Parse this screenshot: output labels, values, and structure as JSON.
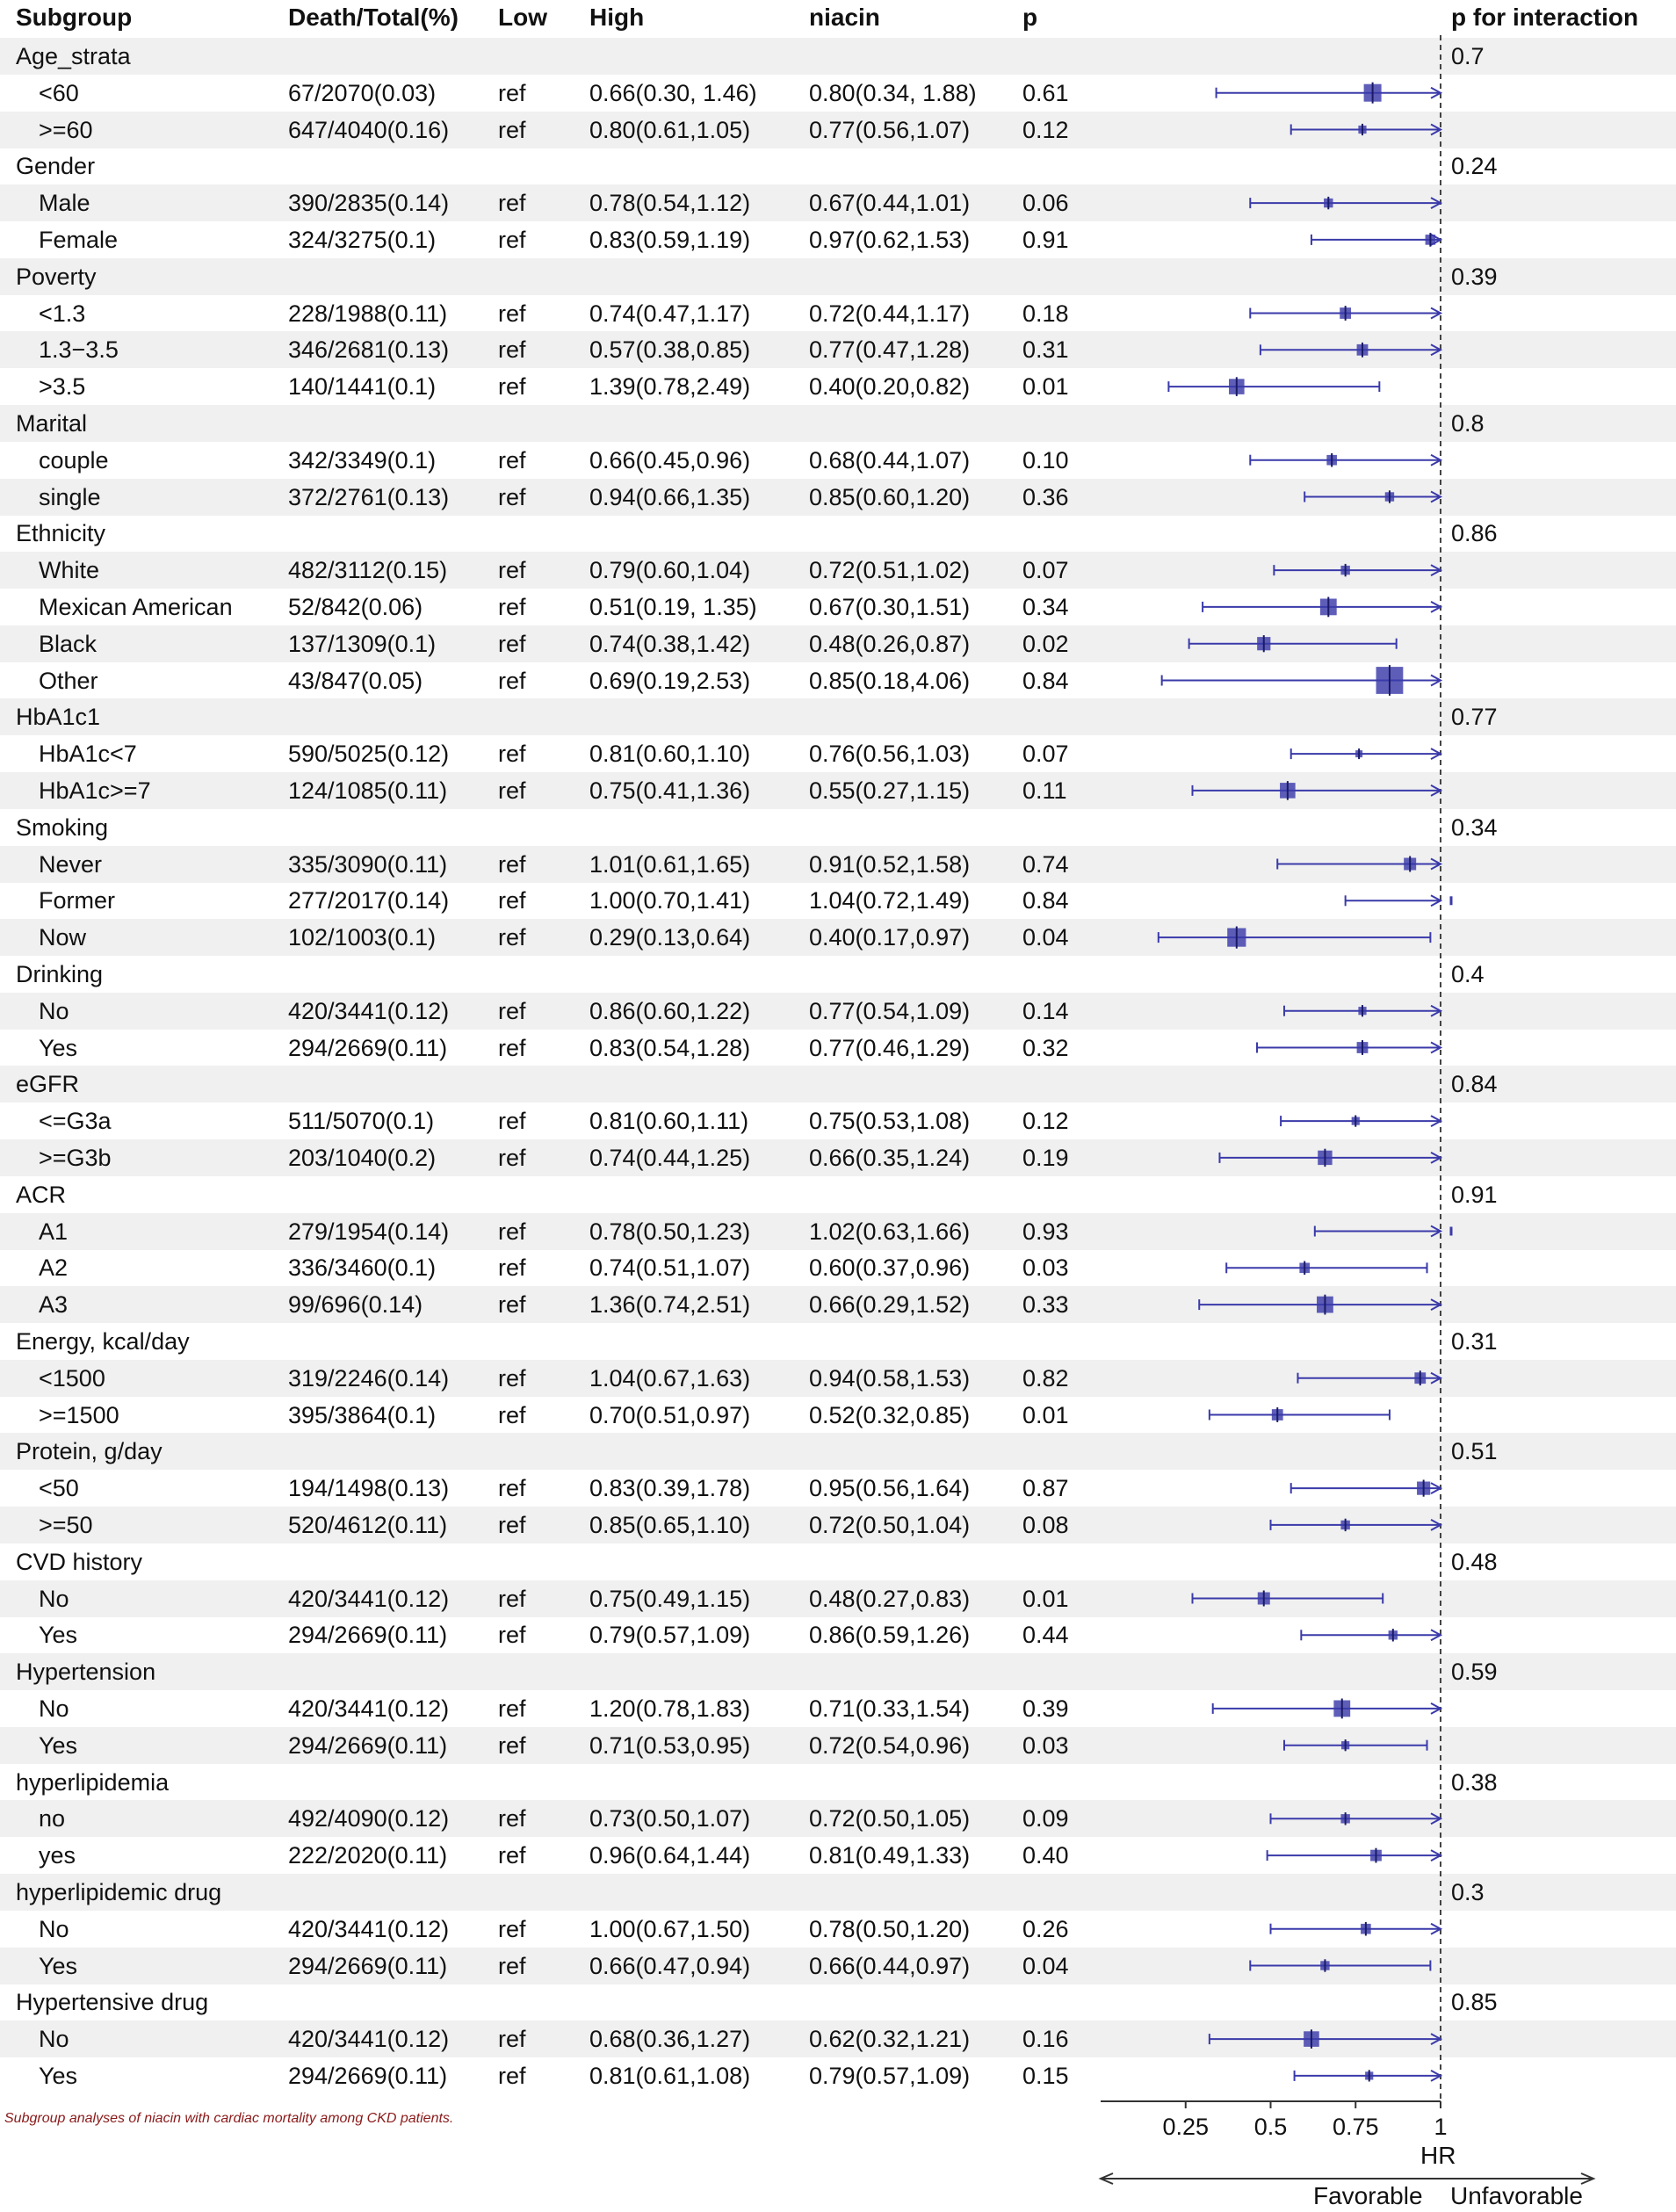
{
  "headers": {
    "subgroup": "Subgroup",
    "death": "Death/Total(%)",
    "low": "Low",
    "high": "High",
    "niacin": "niacin",
    "p": "p",
    "pint": "p for interaction"
  },
  "rows": [
    {
      "type": "group",
      "label": "Age_strata",
      "pint": "0.7"
    },
    {
      "type": "sub",
      "label": "<60",
      "death": "67/2070(0.03)",
      "low": "ref",
      "high": "0.66(0.30, 1.46)",
      "niacin": "0.80(0.34, 1.88)",
      "p": "0.61"
    },
    {
      "type": "sub",
      "label": ">=60",
      "death": "647/4040(0.16)",
      "low": "ref",
      "high": "0.80(0.61,1.05)",
      "niacin": "0.77(0.56,1.07)",
      "p": "0.12"
    },
    {
      "type": "group",
      "label": "Gender",
      "pint": "0.24"
    },
    {
      "type": "sub",
      "label": "Male",
      "death": "390/2835(0.14)",
      "low": "ref",
      "high": "0.78(0.54,1.12)",
      "niacin": "0.67(0.44,1.01)",
      "p": "0.06"
    },
    {
      "type": "sub",
      "label": "Female",
      "death": "324/3275(0.1)",
      "low": "ref",
      "high": "0.83(0.59,1.19)",
      "niacin": "0.97(0.62,1.53)",
      "p": "0.91"
    },
    {
      "type": "group",
      "label": "Poverty",
      "pint": "0.39"
    },
    {
      "type": "sub",
      "label": "<1.3",
      "death": "228/1988(0.11)",
      "low": "ref",
      "high": "0.74(0.47,1.17)",
      "niacin": "0.72(0.44,1.17)",
      "p": "0.18"
    },
    {
      "type": "sub",
      "label": "1.3−3.5",
      "death": "346/2681(0.13)",
      "low": "ref",
      "high": "0.57(0.38,0.85)",
      "niacin": "0.77(0.47,1.28)",
      "p": "0.31"
    },
    {
      "type": "sub",
      "label": ">3.5",
      "death": "140/1441(0.1)",
      "low": "ref",
      "high": "1.39(0.78,2.49)",
      "niacin": "0.40(0.20,0.82)",
      "p": "0.01"
    },
    {
      "type": "group",
      "label": "Marital",
      "pint": "0.8"
    },
    {
      "type": "sub",
      "label": "couple",
      "death": "342/3349(0.1)",
      "low": "ref",
      "high": "0.66(0.45,0.96)",
      "niacin": "0.68(0.44,1.07)",
      "p": "0.10"
    },
    {
      "type": "sub",
      "label": "single",
      "death": "372/2761(0.13)",
      "low": "ref",
      "high": "0.94(0.66,1.35)",
      "niacin": "0.85(0.60,1.20)",
      "p": "0.36"
    },
    {
      "type": "group",
      "label": "Ethnicity",
      "pint": "0.86"
    },
    {
      "type": "sub",
      "label": "White",
      "death": "482/3112(0.15)",
      "low": "ref",
      "high": "0.79(0.60,1.04)",
      "niacin": "0.72(0.51,1.02)",
      "p": "0.07"
    },
    {
      "type": "sub",
      "label": "Mexican American",
      "death": "52/842(0.06)",
      "low": "ref",
      "high": "0.51(0.19, 1.35)",
      "niacin": "0.67(0.30,1.51)",
      "p": "0.34"
    },
    {
      "type": "sub",
      "label": "Black",
      "death": "137/1309(0.1)",
      "low": "ref",
      "high": "0.74(0.38,1.42)",
      "niacin": "0.48(0.26,0.87)",
      "p": "0.02"
    },
    {
      "type": "sub",
      "label": "Other",
      "death": "43/847(0.05)",
      "low": "ref",
      "high": "0.69(0.19,2.53)",
      "niacin": "0.85(0.18,4.06)",
      "p": "0.84"
    },
    {
      "type": "group",
      "label": "HbA1c1",
      "pint": "0.77"
    },
    {
      "type": "sub",
      "label": "HbA1c<7",
      "death": "590/5025(0.12)",
      "low": "ref",
      "high": "0.81(0.60,1.10)",
      "niacin": "0.76(0.56,1.03)",
      "p": "0.07"
    },
    {
      "type": "sub",
      "label": "HbA1c>=7",
      "death": "124/1085(0.11)",
      "low": "ref",
      "high": "0.75(0.41,1.36)",
      "niacin": "0.55(0.27,1.15)",
      "p": "0.11"
    },
    {
      "type": "group",
      "label": "Smoking",
      "pint": "0.34"
    },
    {
      "type": "sub",
      "label": "Never",
      "death": "335/3090(0.11)",
      "low": "ref",
      "high": "1.01(0.61,1.65)",
      "niacin": "0.91(0.52,1.58)",
      "p": "0.74"
    },
    {
      "type": "sub",
      "label": "Former",
      "death": "277/2017(0.14)",
      "low": "ref",
      "high": "1.00(0.70,1.41)",
      "niacin": "1.04(0.72,1.49)",
      "p": "0.84"
    },
    {
      "type": "sub",
      "label": "Now",
      "death": "102/1003(0.1)",
      "low": "ref",
      "high": "0.29(0.13,0.64)",
      "niacin": "0.40(0.17,0.97)",
      "p": "0.04"
    },
    {
      "type": "group",
      "label": "Drinking",
      "pint": "0.4"
    },
    {
      "type": "sub",
      "label": "No",
      "death": "420/3441(0.12)",
      "low": "ref",
      "high": "0.86(0.60,1.22)",
      "niacin": "0.77(0.54,1.09)",
      "p": "0.14"
    },
    {
      "type": "sub",
      "label": "Yes",
      "death": "294/2669(0.11)",
      "low": "ref",
      "high": "0.83(0.54,1.28)",
      "niacin": "0.77(0.46,1.29)",
      "p": "0.32"
    },
    {
      "type": "group",
      "label": "eGFR",
      "pint": "0.84"
    },
    {
      "type": "sub",
      "label": "<=G3a",
      "death": "511/5070(0.1)",
      "low": "ref",
      "high": "0.81(0.60,1.11)",
      "niacin": "0.75(0.53,1.08)",
      "p": "0.12"
    },
    {
      "type": "sub",
      "label": ">=G3b",
      "death": "203/1040(0.2)",
      "low": "ref",
      "high": "0.74(0.44,1.25)",
      "niacin": "0.66(0.35,1.24)",
      "p": "0.19"
    },
    {
      "type": "group",
      "label": "ACR",
      "pint": "0.91"
    },
    {
      "type": "sub",
      "label": "A1",
      "death": "279/1954(0.14)",
      "low": "ref",
      "high": "0.78(0.50,1.23)",
      "niacin": "1.02(0.63,1.66)",
      "p": "0.93"
    },
    {
      "type": "sub",
      "label": "A2",
      "death": "336/3460(0.1)",
      "low": "ref",
      "high": "0.74(0.51,1.07)",
      "niacin": "0.60(0.37,0.96)",
      "p": "0.03"
    },
    {
      "type": "sub",
      "label": "A3",
      "death": "99/696(0.14)",
      "low": "ref",
      "high": "1.36(0.74,2.51)",
      "niacin": "0.66(0.29,1.52)",
      "p": "0.33"
    },
    {
      "type": "group",
      "label": "Energy, kcal/day",
      "pint": "0.31"
    },
    {
      "type": "sub",
      "label": "<1500",
      "death": "319/2246(0.14)",
      "low": "ref",
      "high": "1.04(0.67,1.63)",
      "niacin": "0.94(0.58,1.53)",
      "p": "0.82"
    },
    {
      "type": "sub",
      "label": ">=1500",
      "death": "395/3864(0.1)",
      "low": "ref",
      "high": "0.70(0.51,0.97)",
      "niacin": "0.52(0.32,0.85)",
      "p": "0.01"
    },
    {
      "type": "group",
      "label": "Protein,  g/day",
      "pint": "0.51"
    },
    {
      "type": "sub",
      "label": "<50",
      "death": "194/1498(0.13)",
      "low": "ref",
      "high": "0.83(0.39,1.78)",
      "niacin": "0.95(0.56,1.64)",
      "p": "0.87"
    },
    {
      "type": "sub",
      "label": ">=50",
      "death": "520/4612(0.11)",
      "low": "ref",
      "high": "0.85(0.65,1.10)",
      "niacin": "0.72(0.50,1.04)",
      "p": "0.08"
    },
    {
      "type": "group",
      "label": "CVD history",
      "pint": "0.48"
    },
    {
      "type": "sub",
      "label": "No",
      "death": "420/3441(0.12)",
      "low": "ref",
      "high": "0.75(0.49,1.15)",
      "niacin": "0.48(0.27,0.83)",
      "p": "0.01"
    },
    {
      "type": "sub",
      "label": "Yes",
      "death": "294/2669(0.11)",
      "low": "ref",
      "high": "0.79(0.57,1.09)",
      "niacin": "0.86(0.59,1.26)",
      "p": "0.44"
    },
    {
      "type": "group",
      "label": "Hypertension",
      "pint": "0.59"
    },
    {
      "type": "sub",
      "label": "No",
      "death": "420/3441(0.12)",
      "low": "ref",
      "high": "1.20(0.78,1.83)",
      "niacin": "0.71(0.33,1.54)",
      "p": "0.39"
    },
    {
      "type": "sub",
      "label": "Yes",
      "death": "294/2669(0.11)",
      "low": "ref",
      "high": "0.71(0.53,0.95)",
      "niacin": "0.72(0.54,0.96)",
      "p": "0.03"
    },
    {
      "type": "group",
      "label": "hyperlipidemia",
      "pint": "0.38"
    },
    {
      "type": "sub",
      "label": "no",
      "death": "492/4090(0.12)",
      "low": "ref",
      "high": "0.73(0.50,1.07)",
      "niacin": "0.72(0.50,1.05)",
      "p": "0.09"
    },
    {
      "type": "sub",
      "label": "yes",
      "death": "222/2020(0.11)",
      "low": "ref",
      "high": "0.96(0.64,1.44)",
      "niacin": "0.81(0.49,1.33)",
      "p": "0.40"
    },
    {
      "type": "group",
      "label": "hyperlipidemic drug",
      "pint": "0.3"
    },
    {
      "type": "sub",
      "label": "No",
      "death": "420/3441(0.12)",
      "low": "ref",
      "high": "1.00(0.67,1.50)",
      "niacin": "0.78(0.50,1.20)",
      "p": "0.26"
    },
    {
      "type": "sub",
      "label": "Yes",
      "death": "294/2669(0.11)",
      "low": "ref",
      "high": "0.66(0.47,0.94)",
      "niacin": "0.66(0.44,0.97)",
      "p": "0.04"
    },
    {
      "type": "group",
      "label": "Hypertensive drug",
      "pint": "0.85"
    },
    {
      "type": "sub",
      "label": "No",
      "death": "420/3441(0.12)",
      "low": "ref",
      "high": "0.68(0.36,1.27)",
      "niacin": "0.62(0.32,1.21)",
      "p": "0.16"
    },
    {
      "type": "sub",
      "label": "Yes",
      "death": "294/2669(0.11)",
      "low": "ref",
      "high": "0.81(0.61,1.08)",
      "niacin": "0.79(0.57,1.09)",
      "p": "0.15"
    }
  ],
  "chart_data": {
    "type": "forest",
    "xlabel": "HR",
    "xlim": [
      0,
      1
    ],
    "xticks": [
      "0.25",
      "0.5",
      "0.75",
      "1"
    ],
    "xtick_values": [
      0.25,
      0.5,
      0.75,
      1
    ],
    "reference_line": 1,
    "left_direction_label": "Favorable",
    "right_direction_label": "Unfavorable",
    "marker_color": "#3a3aaa",
    "points": [
      {
        "row": 1,
        "est": 0.8,
        "lo": 0.34,
        "hi": 1.88,
        "w": 1.5
      },
      {
        "row": 2,
        "est": 0.77,
        "lo": 0.56,
        "hi": 1.07,
        "w": 0.6
      },
      {
        "row": 4,
        "est": 0.67,
        "lo": 0.44,
        "hi": 1.01,
        "w": 0.7
      },
      {
        "row": 5,
        "est": 0.97,
        "lo": 0.62,
        "hi": 1.53,
        "w": 0.8
      },
      {
        "row": 7,
        "est": 0.72,
        "lo": 0.44,
        "hi": 1.17,
        "w": 0.9
      },
      {
        "row": 8,
        "est": 0.77,
        "lo": 0.47,
        "hi": 1.28,
        "w": 0.9
      },
      {
        "row": 9,
        "est": 0.4,
        "lo": 0.2,
        "hi": 0.82,
        "w": 1.3
      },
      {
        "row": 11,
        "est": 0.68,
        "lo": 0.44,
        "hi": 1.07,
        "w": 0.8
      },
      {
        "row": 12,
        "est": 0.85,
        "lo": 0.6,
        "hi": 1.2,
        "w": 0.7
      },
      {
        "row": 14,
        "est": 0.72,
        "lo": 0.51,
        "hi": 1.02,
        "w": 0.7
      },
      {
        "row": 15,
        "est": 0.67,
        "lo": 0.3,
        "hi": 1.51,
        "w": 1.4
      },
      {
        "row": 16,
        "est": 0.48,
        "lo": 0.26,
        "hi": 0.87,
        "w": 1.1
      },
      {
        "row": 17,
        "est": 0.85,
        "lo": 0.18,
        "hi": 4.06,
        "w": 2.4
      },
      {
        "row": 19,
        "est": 0.76,
        "lo": 0.56,
        "hi": 1.03,
        "w": 0.5
      },
      {
        "row": 20,
        "est": 0.55,
        "lo": 0.27,
        "hi": 1.15,
        "w": 1.3
      },
      {
        "row": 22,
        "est": 0.91,
        "lo": 0.52,
        "hi": 1.58,
        "w": 1.0
      },
      {
        "row": 23,
        "est": 1.04,
        "lo": 0.72,
        "hi": 1.49,
        "w": 0.9
      },
      {
        "row": 24,
        "est": 0.4,
        "lo": 0.17,
        "hi": 0.97,
        "w": 1.6
      },
      {
        "row": 26,
        "est": 0.77,
        "lo": 0.54,
        "hi": 1.09,
        "w": 0.6
      },
      {
        "row": 27,
        "est": 0.77,
        "lo": 0.46,
        "hi": 1.29,
        "w": 0.9
      },
      {
        "row": 29,
        "est": 0.75,
        "lo": 0.53,
        "hi": 1.08,
        "w": 0.6
      },
      {
        "row": 30,
        "est": 0.66,
        "lo": 0.35,
        "hi": 1.24,
        "w": 1.2
      },
      {
        "row": 32,
        "est": 1.02,
        "lo": 0.63,
        "hi": 1.66,
        "w": 0.9
      },
      {
        "row": 33,
        "est": 0.6,
        "lo": 0.37,
        "hi": 0.96,
        "w": 0.8
      },
      {
        "row": 34,
        "est": 0.66,
        "lo": 0.29,
        "hi": 1.52,
        "w": 1.4
      },
      {
        "row": 36,
        "est": 0.94,
        "lo": 0.58,
        "hi": 1.53,
        "w": 0.9
      },
      {
        "row": 37,
        "est": 0.52,
        "lo": 0.32,
        "hi": 0.85,
        "w": 0.9
      },
      {
        "row": 39,
        "est": 0.95,
        "lo": 0.56,
        "hi": 1.64,
        "w": 1.1
      },
      {
        "row": 40,
        "est": 0.72,
        "lo": 0.5,
        "hi": 1.04,
        "w": 0.7
      },
      {
        "row": 42,
        "est": 0.48,
        "lo": 0.27,
        "hi": 0.83,
        "w": 1.0
      },
      {
        "row": 43,
        "est": 0.86,
        "lo": 0.59,
        "hi": 1.26,
        "w": 0.7
      },
      {
        "row": 45,
        "est": 0.71,
        "lo": 0.33,
        "hi": 1.54,
        "w": 1.4
      },
      {
        "row": 46,
        "est": 0.72,
        "lo": 0.54,
        "hi": 0.96,
        "w": 0.6
      },
      {
        "row": 48,
        "est": 0.72,
        "lo": 0.5,
        "hi": 1.05,
        "w": 0.7
      },
      {
        "row": 49,
        "est": 0.81,
        "lo": 0.49,
        "hi": 1.33,
        "w": 0.9
      },
      {
        "row": 51,
        "est": 0.78,
        "lo": 0.5,
        "hi": 1.2,
        "w": 0.8
      },
      {
        "row": 52,
        "est": 0.66,
        "lo": 0.44,
        "hi": 0.97,
        "w": 0.7
      },
      {
        "row": 54,
        "est": 0.62,
        "lo": 0.32,
        "hi": 1.21,
        "w": 1.3
      },
      {
        "row": 55,
        "est": 0.79,
        "lo": 0.57,
        "hi": 1.09,
        "w": 0.6
      }
    ]
  },
  "caption": "Subgroup analyses of niacin with cardiac mortality among CKD patients."
}
